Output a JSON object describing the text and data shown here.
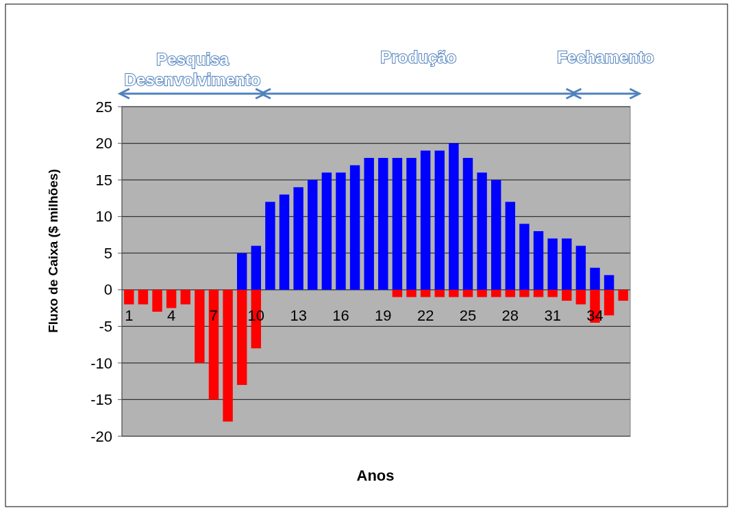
{
  "chart_data": {
    "type": "bar",
    "xlabel": "Anos",
    "ylabel": "Fluxo de Caixa ($ milhões)",
    "categories": [
      "1",
      null,
      null,
      "4",
      null,
      null,
      "7",
      null,
      null,
      "10",
      null,
      null,
      "13",
      null,
      null,
      "16",
      null,
      null,
      "19",
      null,
      null,
      "22",
      null,
      null,
      "25",
      null,
      null,
      "28",
      null,
      null,
      "31",
      null,
      null,
      "34",
      null,
      null
    ],
    "series": [
      {
        "color": "#ff0000",
        "values": [
          -2,
          -2,
          -3,
          -2.5,
          -2,
          -10,
          -15,
          -18,
          -13,
          -8,
          null,
          null,
          null,
          null,
          null,
          null,
          null,
          null,
          null,
          -1,
          -1,
          -1,
          -1,
          -1,
          -1,
          -1,
          -1,
          -1,
          -1,
          -1,
          -1,
          -1.5,
          -2,
          -4.5,
          -3.5,
          -1.5
        ]
      },
      {
        "color": "#0000ff",
        "values": [
          null,
          null,
          null,
          null,
          null,
          null,
          null,
          null,
          5,
          6,
          12,
          13,
          14,
          15,
          16,
          16,
          17,
          18,
          18,
          18,
          18,
          19,
          19,
          20,
          18,
          16,
          15,
          12,
          9,
          8,
          7,
          7,
          6,
          3,
          2,
          null
        ]
      }
    ],
    "stacked": true,
    "ylim": [
      -20,
      25
    ],
    "yticks": [
      -20,
      -15,
      -10,
      -5,
      0,
      5,
      10,
      15,
      20,
      25
    ],
    "grid": "y",
    "annotations": [
      "Pesquisa\nDesenvolvimento",
      "Produção",
      "Fechamento"
    ]
  }
}
